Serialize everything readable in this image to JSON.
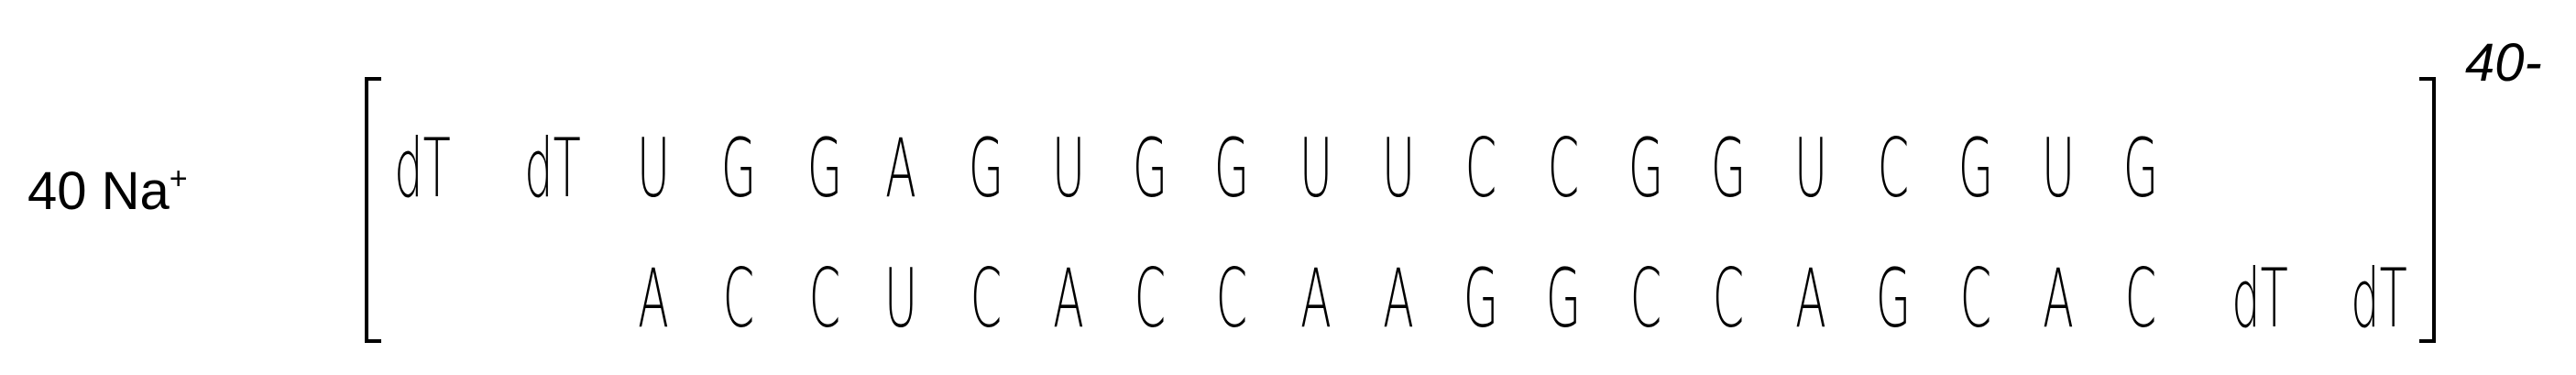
{
  "counterion": {
    "count": "40 Na",
    "sign": "+"
  },
  "duplex": {
    "sense": [
      "dT",
      "dT",
      "U",
      "G",
      "G",
      "A",
      "G",
      "U",
      "G",
      "G",
      "U",
      "U",
      "C",
      "C",
      "G",
      "G",
      "U",
      "C",
      "G",
      "U",
      "G"
    ],
    "antisense": [
      "A",
      "C",
      "C",
      "U",
      "C",
      "A",
      "C",
      "C",
      "A",
      "A",
      "G",
      "G",
      "C",
      "C",
      "A",
      "G",
      "C",
      "A",
      "C",
      "dT",
      "dT"
    ]
  },
  "charge": "40-"
}
